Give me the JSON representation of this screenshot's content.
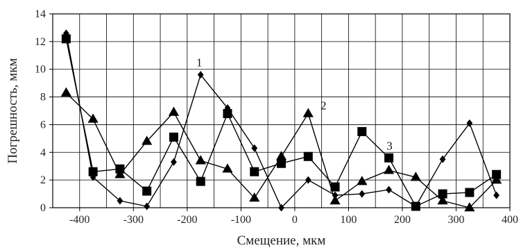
{
  "chart_data": {
    "type": "line",
    "title": "",
    "xlabel": "Смещение, мкм",
    "ylabel": "Погрешность, мкм",
    "xlim": [
      -450,
      400
    ],
    "ylim": [
      0,
      14
    ],
    "x_ticks": [
      -400,
      -300,
      -200,
      -100,
      0,
      100,
      200,
      300,
      400
    ],
    "y_ticks": [
      0,
      2,
      4,
      6,
      8,
      10,
      12,
      14
    ],
    "x_grid_step": 50,
    "grid": true,
    "x": [
      -425,
      -375,
      -325,
      -275,
      -225,
      -175,
      -125,
      -75,
      -25,
      25,
      75,
      125,
      175,
      225,
      275,
      325,
      375
    ],
    "series": [
      {
        "marker": "diamond",
        "label": "1",
        "values": [
          12.6,
          2.2,
          0.5,
          0.1,
          3.3,
          9.6,
          7.2,
          4.3,
          0.0,
          2.0,
          0.9,
          1.0,
          1.3,
          0.1,
          3.5,
          6.1,
          0.9
        ]
      },
      {
        "marker": "triangle",
        "label": "2",
        "values": [
          8.3,
          6.4,
          2.4,
          4.8,
          6.9,
          3.4,
          2.8,
          0.7,
          3.7,
          6.8,
          0.5,
          1.9,
          2.7,
          2.2,
          0.5,
          0.0,
          2.0
        ]
      },
      {
        "marker": "square",
        "label": "3",
        "values": [
          12.2,
          2.6,
          2.8,
          1.2,
          5.1,
          1.9,
          6.8,
          2.6,
          3.2,
          3.7,
          1.5,
          5.5,
          3.6,
          0.1,
          1.0,
          1.1,
          2.4
        ]
      }
    ]
  }
}
